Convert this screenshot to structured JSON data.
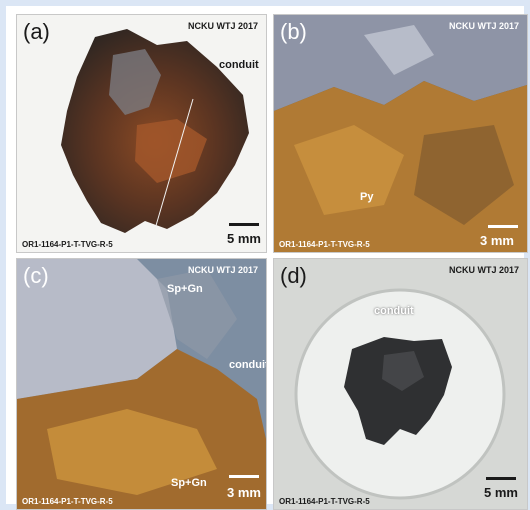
{
  "panels": {
    "a": {
      "letter": "(a)",
      "credit": "NCKU WTJ 2017",
      "sample": "OR1-1164-P1-T-TVG-R-5",
      "scale": "5 mm",
      "annotations": [
        "conduit"
      ]
    },
    "b": {
      "letter": "(b)",
      "credit": "NCKU WTJ 2017",
      "sample": "OR1-1164-P1-T-TVG-R-5",
      "scale": "3 mm",
      "annotations": [
        "Py"
      ]
    },
    "c": {
      "letter": "(c)",
      "credit": "NCKU WTJ 2017",
      "sample": "OR1-1164-P1-T-TVG-R-5",
      "scale": "3 mm",
      "annotations": [
        "Sp+Gn",
        "conduit",
        "Sp+Gn"
      ]
    },
    "d": {
      "letter": "(d)",
      "credit": "NCKU WTJ 2017",
      "sample": "OR1-1164-P1-T-TVG-R-5",
      "scale": "5 mm",
      "annotations": [
        "conduit"
      ]
    }
  },
  "colors": {
    "background": "#dbe6f5",
    "rock_dark": "#3a2e28",
    "oxide_orange": "#b8742e",
    "crystal_grey": "#a6a9b4"
  }
}
